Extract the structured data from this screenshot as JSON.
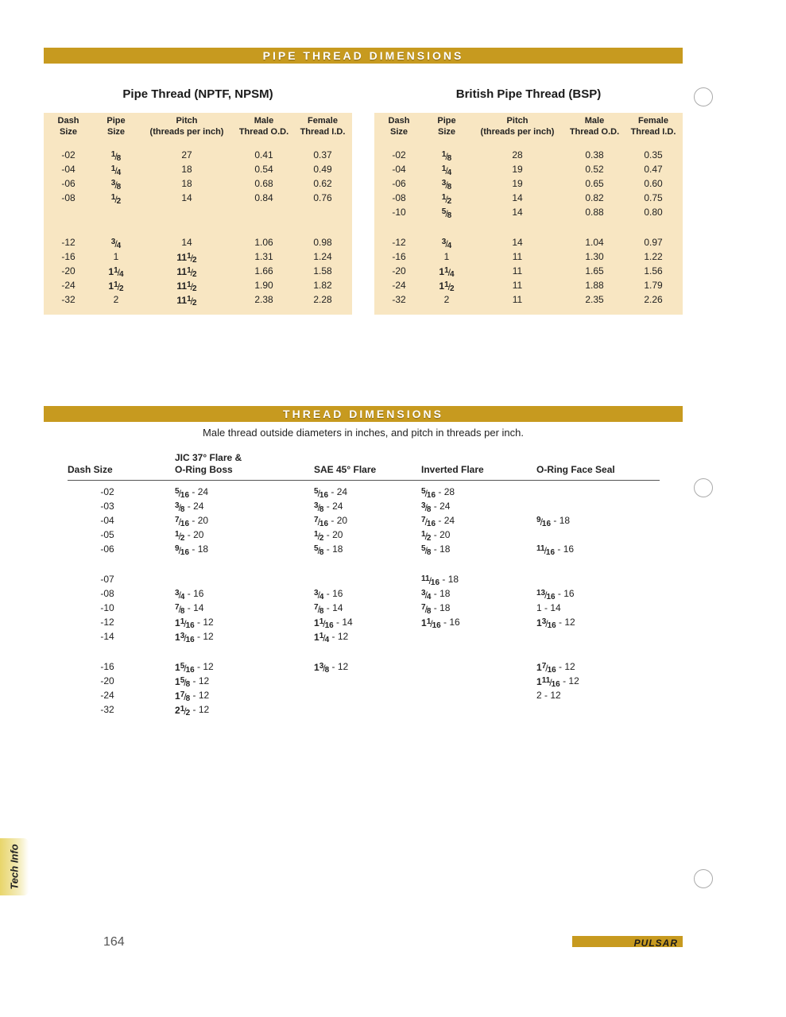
{
  "colors": {
    "band_bg": "#c79a1f",
    "band_text": "#ffffff",
    "table_bg": "#f8e6c2",
    "text": "#222222"
  },
  "section1": {
    "band_title": "PIPE THREAD DIMENSIONS",
    "left": {
      "title": "Pipe Thread (NPTF, NPSM)",
      "headers": {
        "dash1": "Dash",
        "dash2": "Size",
        "pipe1": "Pipe",
        "pipe2": "Size",
        "pitch1": "Pitch",
        "pitch2": "(threads per inch)",
        "male1": "Male",
        "male2": "Thread O.D.",
        "female1": "Female",
        "female2": "Thread I.D."
      },
      "group1": [
        {
          "dash": "-02",
          "pipe": {
            "n": "1",
            "d": "8"
          },
          "pitch": "27",
          "male": "0.41",
          "female": "0.37"
        },
        {
          "dash": "-04",
          "pipe": {
            "n": "1",
            "d": "4"
          },
          "pitch": "18",
          "male": "0.54",
          "female": "0.49"
        },
        {
          "dash": "-06",
          "pipe": {
            "n": "3",
            "d": "8"
          },
          "pitch": "18",
          "male": "0.68",
          "female": "0.62"
        },
        {
          "dash": "-08",
          "pipe": {
            "n": "1",
            "d": "2"
          },
          "pitch": "14",
          "male": "0.84",
          "female": "0.76"
        }
      ],
      "group2": [
        {
          "dash": "-12",
          "pipe": {
            "n": "3",
            "d": "4"
          },
          "pitch": "14",
          "male": "1.06",
          "female": "0.98"
        },
        {
          "dash": "-16",
          "pipe": {
            "t": "1"
          },
          "pitch": {
            "w": "11",
            "n": "1",
            "d": "2"
          },
          "male": "1.31",
          "female": "1.24"
        },
        {
          "dash": "-20",
          "pipe": {
            "w": "1",
            "n": "1",
            "d": "4"
          },
          "pitch": {
            "w": "11",
            "n": "1",
            "d": "2"
          },
          "male": "1.66",
          "female": "1.58"
        },
        {
          "dash": "-24",
          "pipe": {
            "w": "1",
            "n": "1",
            "d": "2"
          },
          "pitch": {
            "w": "11",
            "n": "1",
            "d": "2"
          },
          "male": "1.90",
          "female": "1.82"
        },
        {
          "dash": "-32",
          "pipe": {
            "t": "2"
          },
          "pitch": {
            "w": "11",
            "n": "1",
            "d": "2"
          },
          "male": "2.38",
          "female": "2.28"
        }
      ]
    },
    "right": {
      "title": "British Pipe Thread (BSP)",
      "headers": {
        "dash1": "Dash",
        "dash2": "Size",
        "pipe1": "Pipe",
        "pipe2": "Size",
        "pitch1": "Pitch",
        "pitch2": "(threads per inch)",
        "male1": "Male",
        "male2": "Thread O.D.",
        "female1": "Female",
        "female2": "Thread I.D."
      },
      "group1": [
        {
          "dash": "-02",
          "pipe": {
            "n": "1",
            "d": "8"
          },
          "pitch": "28",
          "male": "0.38",
          "female": "0.35"
        },
        {
          "dash": "-04",
          "pipe": {
            "n": "1",
            "d": "4"
          },
          "pitch": "19",
          "male": "0.52",
          "female": "0.47"
        },
        {
          "dash": "-06",
          "pipe": {
            "n": "3",
            "d": "8"
          },
          "pitch": "19",
          "male": "0.65",
          "female": "0.60"
        },
        {
          "dash": "-08",
          "pipe": {
            "n": "1",
            "d": "2"
          },
          "pitch": "14",
          "male": "0.82",
          "female": "0.75"
        },
        {
          "dash": "-10",
          "pipe": {
            "n": "5",
            "d": "8"
          },
          "pitch": "14",
          "male": "0.88",
          "female": "0.80"
        }
      ],
      "group2": [
        {
          "dash": "-12",
          "pipe": {
            "n": "3",
            "d": "4"
          },
          "pitch": "14",
          "male": "1.04",
          "female": "0.97"
        },
        {
          "dash": "-16",
          "pipe": {
            "t": "1"
          },
          "pitch": "11",
          "male": "1.30",
          "female": "1.22"
        },
        {
          "dash": "-20",
          "pipe": {
            "w": "1",
            "n": "1",
            "d": "4"
          },
          "pitch": "11",
          "male": "1.65",
          "female": "1.56"
        },
        {
          "dash": "-24",
          "pipe": {
            "w": "1",
            "n": "1",
            "d": "2"
          },
          "pitch": "11",
          "male": "1.88",
          "female": "1.79"
        },
        {
          "dash": "-32",
          "pipe": {
            "t": "2"
          },
          "pitch": "11",
          "male": "2.35",
          "female": "2.26"
        }
      ]
    }
  },
  "section2": {
    "band_title": "THREAD DIMENSIONS",
    "subtitle": "Male thread outside diameters in inches, and pitch in threads per inch.",
    "headers": {
      "dash": "Dash Size",
      "jic_l1": "JIC 37° Flare &",
      "jic_l2": "O-Ring Boss",
      "sae": "SAE 45° Flare",
      "inv": "Inverted Flare",
      "ofs": "O-Ring Face Seal"
    },
    "group1": [
      {
        "dash": "-02",
        "jic": {
          "n": "5",
          "d": "16",
          "p": "24"
        },
        "sae": {
          "n": "5",
          "d": "16",
          "p": "24"
        },
        "inv": {
          "n": "5",
          "d": "16",
          "p": "28"
        }
      },
      {
        "dash": "-03",
        "jic": {
          "n": "3",
          "d": "8",
          "p": "24"
        },
        "sae": {
          "n": "3",
          "d": "8",
          "p": "24"
        },
        "inv": {
          "n": "3",
          "d": "8",
          "p": "24"
        }
      },
      {
        "dash": "-04",
        "jic": {
          "n": "7",
          "d": "16",
          "p": "20"
        },
        "sae": {
          "n": "7",
          "d": "16",
          "p": "20"
        },
        "inv": {
          "n": "7",
          "d": "16",
          "p": "24"
        },
        "ofs": {
          "n": "9",
          "d": "16",
          "p": "18"
        }
      },
      {
        "dash": "-05",
        "jic": {
          "n": "1",
          "d": "2",
          "p": "20"
        },
        "sae": {
          "n": "1",
          "d": "2",
          "p": "20"
        },
        "inv": {
          "n": "1",
          "d": "2",
          "p": "20"
        }
      },
      {
        "dash": "-06",
        "jic": {
          "n": "9",
          "d": "16",
          "p": "18"
        },
        "sae": {
          "n": "5",
          "d": "8",
          "p": "18"
        },
        "inv": {
          "n": "5",
          "d": "8",
          "p": "18"
        },
        "ofs": {
          "n": "11",
          "d": "16",
          "p": "16"
        }
      }
    ],
    "group2": [
      {
        "dash": "-07",
        "inv": {
          "n": "11",
          "d": "16",
          "p": "18"
        }
      },
      {
        "dash": "-08",
        "jic": {
          "n": "3",
          "d": "4",
          "p": "16"
        },
        "sae": {
          "n": "3",
          "d": "4",
          "p": "16"
        },
        "inv": {
          "n": "3",
          "d": "4",
          "p": "18"
        },
        "ofs": {
          "n": "13",
          "d": "16",
          "p": "16"
        }
      },
      {
        "dash": "-10",
        "jic": {
          "n": "7",
          "d": "8",
          "p": "14"
        },
        "sae": {
          "n": "7",
          "d": "8",
          "p": "14"
        },
        "inv": {
          "n": "7",
          "d": "8",
          "p": "18"
        },
        "ofs": {
          "t": "1 - 14"
        }
      },
      {
        "dash": "-12",
        "jic": {
          "w": "1",
          "n": "1",
          "d": "16",
          "p": "12"
        },
        "sae": {
          "w": "1",
          "n": "1",
          "d": "16",
          "p": "14"
        },
        "inv": {
          "w": "1",
          "n": "1",
          "d": "16",
          "p": "16"
        },
        "ofs": {
          "w": "1",
          "n": "3",
          "d": "16",
          "p": "12"
        }
      },
      {
        "dash": "-14",
        "jic": {
          "w": "1",
          "n": "3",
          "d": "16",
          "p": "12"
        },
        "sae": {
          "w": "1",
          "n": "1",
          "d": "4",
          "p": "12"
        }
      }
    ],
    "group3": [
      {
        "dash": "-16",
        "jic": {
          "w": "1",
          "n": "5",
          "d": "16",
          "p": "12"
        },
        "sae": {
          "w": "1",
          "n": "3",
          "d": "8",
          "p": "12"
        },
        "ofs": {
          "w": "1",
          "n": "7",
          "d": "16",
          "p": "12"
        }
      },
      {
        "dash": "-20",
        "jic": {
          "w": "1",
          "n": "5",
          "d": "8",
          "p": "12"
        },
        "ofs": {
          "w": "1",
          "n": "11",
          "d": "16",
          "p": "12"
        }
      },
      {
        "dash": "-24",
        "jic": {
          "w": "1",
          "n": "7",
          "d": "8",
          "p": "12"
        },
        "ofs": {
          "t": "2 - 12"
        }
      },
      {
        "dash": "-32",
        "jic": {
          "w": "2",
          "n": "1",
          "d": "2",
          "p": "12"
        }
      }
    ]
  },
  "footer": {
    "side_tab": "Tech Info",
    "page_num": "164",
    "logo": "PULSAR"
  }
}
